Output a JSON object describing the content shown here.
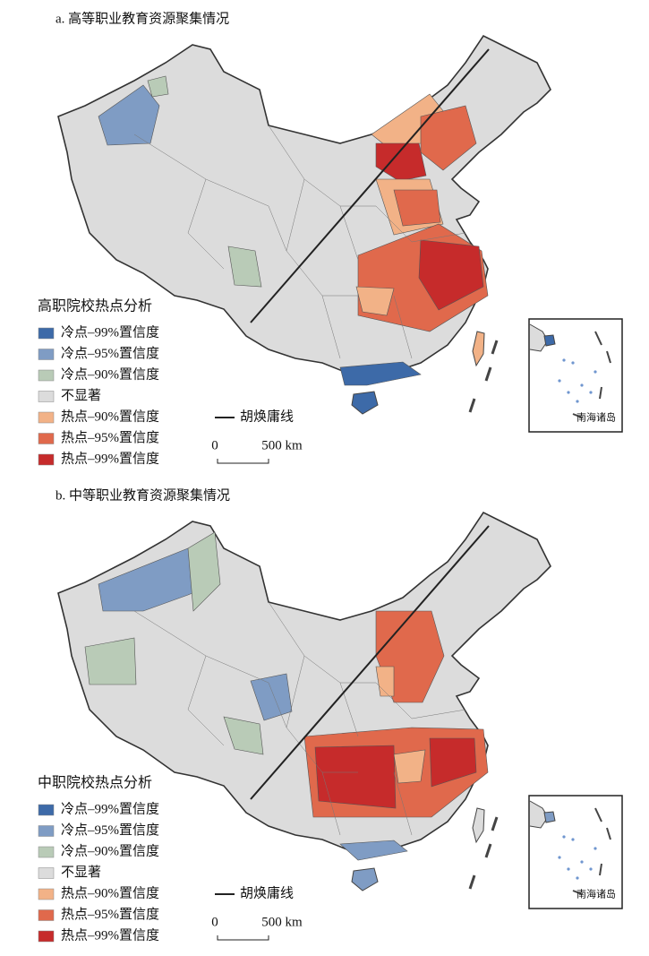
{
  "panels": [
    {
      "title": "a. 高等职业教育资源聚集情况",
      "legend_title": "高职院校热点分析",
      "legend": [
        {
          "label": "冷点–99%置信度",
          "color": "#3d6aa8"
        },
        {
          "label": "冷点–95%置信度",
          "color": "#7f9cc4"
        },
        {
          "label": "冷点–90%置信度",
          "color": "#b9cbb7"
        },
        {
          "label": "不显著",
          "color": "#dcdcdc"
        },
        {
          "label": "热点–90%置信度",
          "color": "#f2b287"
        },
        {
          "label": "热点–95%置信度",
          "color": "#e0694c"
        },
        {
          "label": "热点–99%置信度",
          "color": "#c62b2b"
        }
      ],
      "hu_line_label": "胡焕庸线",
      "scale_labels": [
        "0",
        "500 km"
      ],
      "inset_label": "南海诸岛"
    },
    {
      "title": "b. 中等职业教育资源聚集情况",
      "legend_title": "中职院校热点分析",
      "legend": [
        {
          "label": "冷点–99%置信度",
          "color": "#3d6aa8"
        },
        {
          "label": "冷点–95%置信度",
          "color": "#7f9cc4"
        },
        {
          "label": "冷点–90%置信度",
          "color": "#b9cbb7"
        },
        {
          "label": "不显著",
          "color": "#dcdcdc"
        },
        {
          "label": "热点–90%置信度",
          "color": "#f2b287"
        },
        {
          "label": "热点–95%置信度",
          "color": "#e0694c"
        },
        {
          "label": "热点–99%置信度",
          "color": "#c62b2b"
        }
      ],
      "hu_line_label": "胡焕庸线",
      "scale_labels": [
        "0",
        "500 km"
      ],
      "inset_label": "南海诸岛"
    }
  ]
}
